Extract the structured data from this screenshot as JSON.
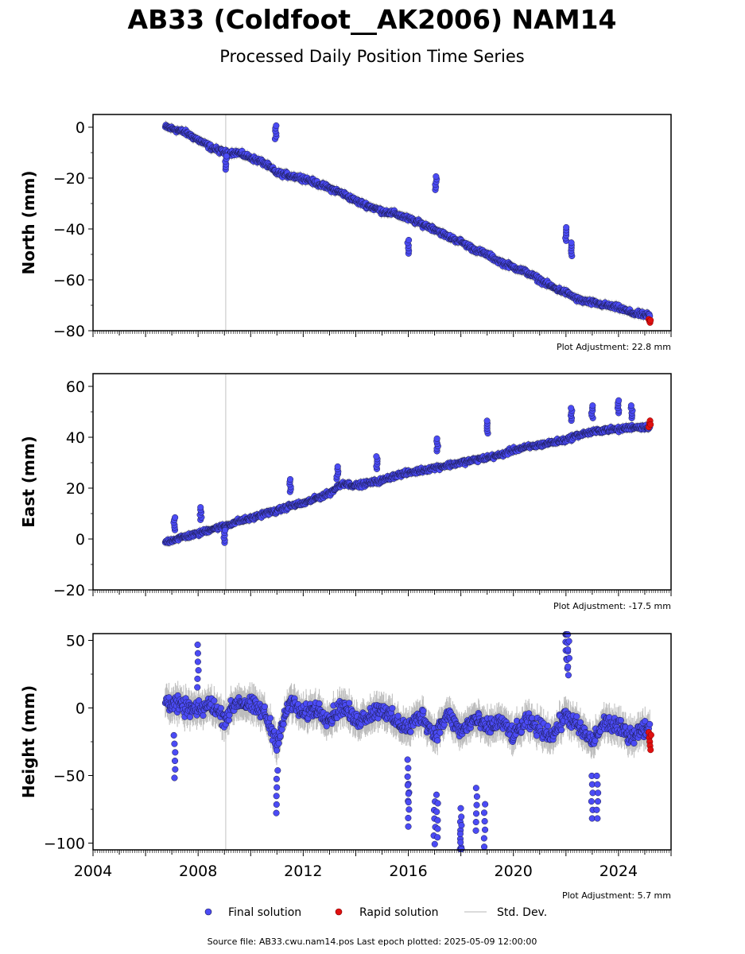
{
  "figure": {
    "title": "AB33 (Coldfoot__AK2006) NAM14",
    "subtitle": "Processed Daily Position Time Series",
    "footer": "Source file: AB33.cwu.nam14.pos  Last epoch plotted: 2025-05-09 12:00:00"
  },
  "legend": {
    "final": "Final solution",
    "rapid": "Rapid solution",
    "std": "Std. Dev."
  },
  "colors": {
    "final_fill": "#4b4bf5",
    "final_edge": "#1a1a4a",
    "rapid_fill": "#e01010",
    "rapid_edge": "#7a0000",
    "stddev": "#bdbdbd",
    "event_line": "#d6d6d6"
  },
  "chart_data": [
    {
      "type": "scatter",
      "panel": "north",
      "ylabel": "North (mm)",
      "ylim": [
        -80,
        5
      ],
      "yticks": [
        0,
        -20,
        -40,
        -60,
        -80
      ],
      "ytick_labels": [
        "0",
        "−20",
        "−40",
        "−60",
        "−80"
      ],
      "xlim": [
        2004,
        2026
      ],
      "x_start": 2006.75,
      "x_end": 2025.2,
      "final_series": [
        [
          2006.8,
          0
        ],
        [
          2007.5,
          -2
        ],
        [
          2008.0,
          -5
        ],
        [
          2008.5,
          -8
        ],
        [
          2009.0,
          -10
        ],
        [
          2009.5,
          -10
        ],
        [
          2010.0,
          -12
        ],
        [
          2010.5,
          -14
        ],
        [
          2011.0,
          -18
        ],
        [
          2011.5,
          -19
        ],
        [
          2012.0,
          -20
        ],
        [
          2012.5,
          -22
        ],
        [
          2013.0,
          -24
        ],
        [
          2013.5,
          -26
        ],
        [
          2014.0,
          -29
        ],
        [
          2014.5,
          -31
        ],
        [
          2015.0,
          -33
        ],
        [
          2015.5,
          -34
        ],
        [
          2016.0,
          -36
        ],
        [
          2016.5,
          -38
        ],
        [
          2017.0,
          -40
        ],
        [
          2017.5,
          -43
        ],
        [
          2018.0,
          -45
        ],
        [
          2018.5,
          -48
        ],
        [
          2019.0,
          -50
        ],
        [
          2019.5,
          -53
        ],
        [
          2020.0,
          -55
        ],
        [
          2020.5,
          -57
        ],
        [
          2021.0,
          -60
        ],
        [
          2021.5,
          -63
        ],
        [
          2022.0,
          -65
        ],
        [
          2022.5,
          -68
        ],
        [
          2023.0,
          -69
        ],
        [
          2023.5,
          -70
        ],
        [
          2024.0,
          -71
        ],
        [
          2024.5,
          -73
        ],
        [
          2025.1,
          -74
        ]
      ],
      "noise_amplitude": 1.5,
      "spikes": [
        [
          2009.05,
          -14
        ],
        [
          2010.95,
          -2
        ],
        [
          2016.0,
          -47
        ],
        [
          2017.05,
          -22
        ],
        [
          2022.0,
          -42
        ],
        [
          2022.2,
          -48
        ]
      ],
      "rapid_points": [
        [
          2025.15,
          -75.5
        ],
        [
          2025.18,
          -76.2
        ],
        [
          2025.2,
          -76.8
        ],
        [
          2025.22,
          -75.9
        ]
      ],
      "plot_adjustment": "Plot Adjustment: 22.8 mm"
    },
    {
      "type": "scatter",
      "panel": "east",
      "ylabel": "East (mm)",
      "ylim": [
        -20,
        65
      ],
      "yticks": [
        60,
        40,
        20,
        0,
        -20
      ],
      "ytick_labels": [
        "60",
        "40",
        "20",
        "0",
        "−20"
      ],
      "xlim": [
        2004,
        2026
      ],
      "x_start": 2006.75,
      "x_end": 2025.2,
      "final_series": [
        [
          2006.8,
          -1
        ],
        [
          2007.5,
          1
        ],
        [
          2008.0,
          2
        ],
        [
          2008.5,
          4
        ],
        [
          2009.0,
          5
        ],
        [
          2009.5,
          7
        ],
        [
          2010.0,
          8
        ],
        [
          2010.5,
          10
        ],
        [
          2011.0,
          11
        ],
        [
          2011.5,
          13
        ],
        [
          2012.0,
          14
        ],
        [
          2012.5,
          16
        ],
        [
          2013.0,
          18
        ],
        [
          2013.5,
          22
        ],
        [
          2014.0,
          21
        ],
        [
          2014.5,
          22
        ],
        [
          2015.0,
          23
        ],
        [
          2015.5,
          25
        ],
        [
          2016.0,
          26
        ],
        [
          2016.5,
          27
        ],
        [
          2017.0,
          28
        ],
        [
          2017.5,
          29
        ],
        [
          2018.0,
          30
        ],
        [
          2018.5,
          31
        ],
        [
          2019.0,
          32
        ],
        [
          2019.5,
          33
        ],
        [
          2020.0,
          35
        ],
        [
          2020.5,
          36
        ],
        [
          2021.0,
          37
        ],
        [
          2021.5,
          38
        ],
        [
          2022.0,
          39
        ],
        [
          2022.5,
          41
        ],
        [
          2023.0,
          42
        ],
        [
          2023.5,
          43
        ],
        [
          2024.0,
          43
        ],
        [
          2024.5,
          44
        ],
        [
          2025.1,
          44
        ]
      ],
      "noise_amplitude": 1.4,
      "spikes": [
        [
          2007.1,
          6
        ],
        [
          2008.1,
          10
        ],
        [
          2009.0,
          1
        ],
        [
          2011.5,
          21
        ],
        [
          2013.3,
          26
        ],
        [
          2014.8,
          30
        ],
        [
          2017.1,
          37
        ],
        [
          2019.0,
          44
        ],
        [
          2022.2,
          49
        ],
        [
          2023.0,
          50
        ],
        [
          2024.0,
          52
        ],
        [
          2024.5,
          50
        ]
      ],
      "rapid_points": [
        [
          2025.15,
          44
        ],
        [
          2025.18,
          45.5
        ],
        [
          2025.2,
          46.5
        ],
        [
          2025.22,
          45
        ]
      ],
      "plot_adjustment": "Plot Adjustment: -17.5 mm"
    },
    {
      "type": "scatter",
      "panel": "height",
      "ylabel": "Height (mm)",
      "ylim": [
        -105,
        55
      ],
      "yticks": [
        50,
        0,
        -50,
        -100
      ],
      "ytick_labels": [
        "50",
        "0",
        "−50",
        "−100"
      ],
      "xlim": [
        2004,
        2026
      ],
      "xticks": [
        2004,
        2008,
        2012,
        2016,
        2020,
        2024
      ],
      "xtick_labels": [
        "2004",
        "2008",
        "2012",
        "2016",
        "2020",
        "2024"
      ],
      "x_start": 2006.75,
      "x_end": 2025.2,
      "final_series": [
        [
          2006.8,
          5
        ],
        [
          2007.5,
          0
        ],
        [
          2008.0,
          -2
        ],
        [
          2008.5,
          3
        ],
        [
          2009.0,
          -8
        ],
        [
          2009.5,
          5
        ],
        [
          2010.0,
          2
        ],
        [
          2010.5,
          -3
        ],
        [
          2011.0,
          -25
        ],
        [
          2011.5,
          5
        ],
        [
          2012.0,
          -5
        ],
        [
          2012.5,
          0
        ],
        [
          2013.0,
          -8
        ],
        [
          2013.5,
          2
        ],
        [
          2014.0,
          -10
        ],
        [
          2014.5,
          -5
        ],
        [
          2015.0,
          0
        ],
        [
          2015.5,
          -10
        ],
        [
          2016.0,
          -15
        ],
        [
          2016.5,
          -5
        ],
        [
          2017.0,
          -20
        ],
        [
          2017.5,
          -5
        ],
        [
          2018.0,
          -18
        ],
        [
          2018.5,
          -8
        ],
        [
          2019.0,
          -15
        ],
        [
          2019.5,
          -10
        ],
        [
          2020.0,
          -20
        ],
        [
          2020.5,
          -10
        ],
        [
          2021.0,
          -15
        ],
        [
          2021.5,
          -20
        ],
        [
          2022.0,
          -5
        ],
        [
          2022.5,
          -15
        ],
        [
          2023.0,
          -25
        ],
        [
          2023.5,
          -10
        ],
        [
          2024.0,
          -15
        ],
        [
          2024.5,
          -20
        ],
        [
          2025.1,
          -15
        ]
      ],
      "noise_amplitude": 9,
      "spikes": [
        [
          2007.1,
          -36
        ],
        [
          2008.0,
          31
        ],
        [
          2011.0,
          -62
        ],
        [
          2016.0,
          -72
        ],
        [
          2016.0,
          -54
        ],
        [
          2017.0,
          -85
        ],
        [
          2017.1,
          -80
        ],
        [
          2018.0,
          -100
        ],
        [
          2018.0,
          -90
        ],
        [
          2018.6,
          -75
        ],
        [
          2018.9,
          -87
        ],
        [
          2022.0,
          52
        ],
        [
          2022.05,
          45
        ],
        [
          2022.1,
          40
        ],
        [
          2023.0,
          -66
        ],
        [
          2023.2,
          -66
        ]
      ],
      "rapid_points": [
        [
          2025.15,
          -18
        ],
        [
          2025.17,
          -22
        ],
        [
          2025.19,
          -25
        ],
        [
          2025.2,
          -28
        ],
        [
          2025.22,
          -31
        ],
        [
          2025.24,
          -20
        ]
      ],
      "plot_adjustment": "Plot Adjustment: 5.7 mm"
    }
  ]
}
